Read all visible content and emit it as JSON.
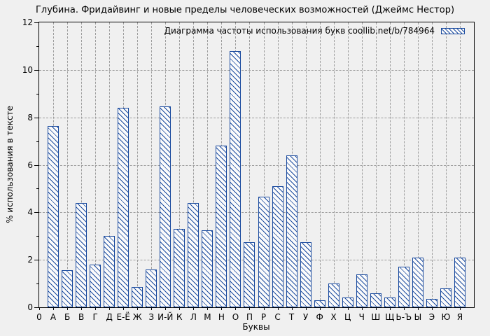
{
  "chart_data": {
    "type": "bar",
    "title": "Глубина. Фридайвинг и новые пределы человеческих возможностей (Джеймс Нестор)",
    "legend_label": "Диаграмма частоты использования букв coollib.net/b/784964",
    "xlabel": "Буквы",
    "ylabel": "% использования в тексте",
    "x_origin_label": "0",
    "categories": [
      "А",
      "Б",
      "В",
      "Г",
      "Д",
      "Е-Ё",
      "Ж",
      "З",
      "И-Й",
      "К",
      "Л",
      "М",
      "Н",
      "О",
      "П",
      "Р",
      "С",
      "Т",
      "У",
      "Ф",
      "Х",
      "Ц",
      "Ч",
      "Ш",
      "Щ",
      "Ь-Ъ",
      "Ы",
      "Э",
      "Ю",
      "Я"
    ],
    "values": [
      7.65,
      1.55,
      4.4,
      1.8,
      3.0,
      8.4,
      0.85,
      1.6,
      8.45,
      3.3,
      4.4,
      3.25,
      6.8,
      10.8,
      2.75,
      4.65,
      5.1,
      6.4,
      2.75,
      0.3,
      1.0,
      0.4,
      1.4,
      0.6,
      0.4,
      1.7,
      2.1,
      0.35,
      0.8,
      2.1
    ],
    "ylim": [
      0,
      12
    ],
    "ytick_step": 2,
    "grid": true,
    "legend_position": "top-right",
    "colors": {
      "bar_border": "#1a4a9e",
      "bar_fill": "#fbfbfb",
      "background": "#f0f0f0",
      "grid": "#9a9a9a",
      "axis": "#000000"
    }
  }
}
